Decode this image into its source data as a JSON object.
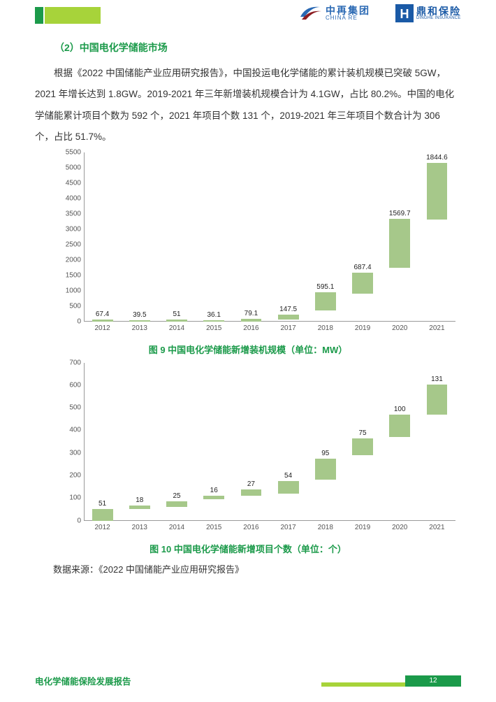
{
  "header": {
    "brand_a_cn": "中再集团",
    "brand_a_en": "CHINA RE",
    "brand_b_cn": "鼎和保险",
    "brand_b_en": "DINGHE INSURANCE",
    "accent_a_color": "#1b9a4a",
    "accent_b_color": "#a7d33a"
  },
  "body": {
    "section_title": "（2）中国电化学储能市场",
    "paragraph": "根据《2022 中国储能产业应用研究报告》，中国投运电化学储能的累计装机规模已突破 5GW，2021 年增长达到 1.8GW。2019-2021 年三年新增装机规模合计为 4.1GW，占比 80.2%。中国的电化学储能累计项目个数为 592 个，2021 年项目个数 131 个，2019-2021 年三年项目个数合计为 306 个，占比 51.7%。",
    "source_text": "数据来源：《2022 中国储能产业应用研究报告》"
  },
  "chart1": {
    "caption": "图 9 中国电化学储能新增装机规模（单位：MW）",
    "type": "bar",
    "categories": [
      "2012",
      "2013",
      "2014",
      "2015",
      "2016",
      "2017",
      "2018",
      "2019",
      "2020",
      "2021"
    ],
    "values": [
      67.4,
      39.5,
      51,
      36.1,
      79.1,
      147.5,
      595.1,
      687.4,
      1569.7,
      1844.6
    ],
    "labels": [
      "67.4",
      "39.5",
      "51",
      "36.1",
      "79.1",
      "147.5",
      "595.1",
      "687.4",
      "1569.7",
      "1844.6"
    ],
    "y_max": 5500,
    "y_tick_step": 500,
    "bar_color": "#a6c88a",
    "axis_color": "#999999",
    "text_color": "#555555",
    "label_fontsize": 10,
    "caption_color": "#1b9a4a",
    "float_bottoms": [
      0,
      0,
      0,
      0,
      0,
      67,
      350,
      900,
      1750,
      3300
    ]
  },
  "chart2": {
    "caption": "图 10 中国电化学储能新增项目个数（单位：个）",
    "type": "bar",
    "categories": [
      "2012",
      "2013",
      "2014",
      "2015",
      "2016",
      "2017",
      "2018",
      "2019",
      "2020",
      "2021"
    ],
    "values": [
      51,
      18,
      25,
      16,
      27,
      54,
      95,
      75,
      100,
      131
    ],
    "labels": [
      "51",
      "18",
      "25",
      "16",
      "27",
      "54",
      "95",
      "75",
      "100",
      "131"
    ],
    "y_max": 700,
    "y_tick_step": 100,
    "bar_color": "#a6c88a",
    "axis_color": "#999999",
    "text_color": "#555555",
    "label_fontsize": 10,
    "caption_color": "#1b9a4a",
    "float_bottoms": [
      0,
      50,
      60,
      95,
      110,
      120,
      180,
      290,
      370,
      470
    ]
  },
  "footer": {
    "title": "电化学储能保险发展报告",
    "page_number": "12",
    "bar_a_color": "#a7d33a",
    "bar_b_color": "#1b9a4a"
  }
}
